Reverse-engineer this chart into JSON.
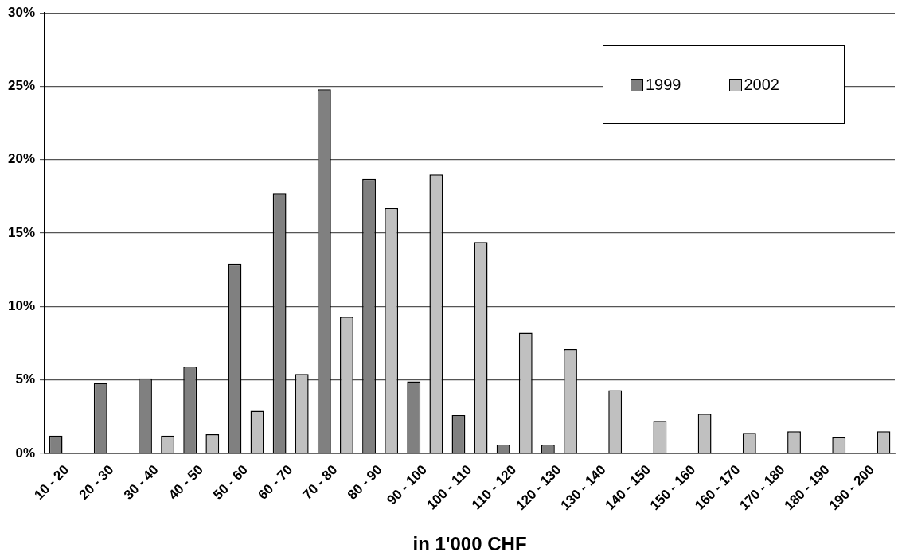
{
  "chart_data": {
    "type": "bar",
    "xlabel": "in 1'000 CHF",
    "categories": [
      "10 - 20",
      "20 - 30",
      "30 - 40",
      "40 - 50",
      "50 - 60",
      "60 - 70",
      "70 - 80",
      "80 - 90",
      "90 - 100",
      "100 - 110",
      "110 - 120",
      "120 - 130",
      "130 - 140",
      "140 - 150",
      "150 - 160",
      "160 - 170",
      "170 - 180",
      "180 - 190",
      "190 - 200"
    ],
    "series": [
      {
        "name": "1999",
        "color": "#808080",
        "values": [
          1.2,
          4.8,
          5.1,
          5.9,
          12.9,
          17.7,
          24.8,
          18.7,
          4.9,
          2.6,
          0.6,
          0.6,
          null,
          0,
          null,
          0,
          0,
          0,
          0
        ]
      },
      {
        "name": "2002",
        "color": "#c0c0c0",
        "values": [
          0,
          0,
          1.2,
          1.3,
          2.9,
          5.4,
          9.3,
          16.7,
          19.0,
          14.4,
          8.2,
          7.1,
          4.3,
          2.2,
          2.7,
          1.4,
          1.5,
          1.1,
          1.5
        ]
      }
    ],
    "ylim": [
      0,
      30
    ],
    "yticks": [
      {
        "value": 0,
        "label": "0%"
      },
      {
        "value": 5,
        "label": "5%"
      },
      {
        "value": 10,
        "label": "10%"
      },
      {
        "value": 15,
        "label": "15%"
      },
      {
        "value": 20,
        "label": "20%"
      },
      {
        "value": 25,
        "label": "25%"
      },
      {
        "value": 30,
        "label": "30%"
      }
    ],
    "grid": "y",
    "legend": "top right"
  }
}
